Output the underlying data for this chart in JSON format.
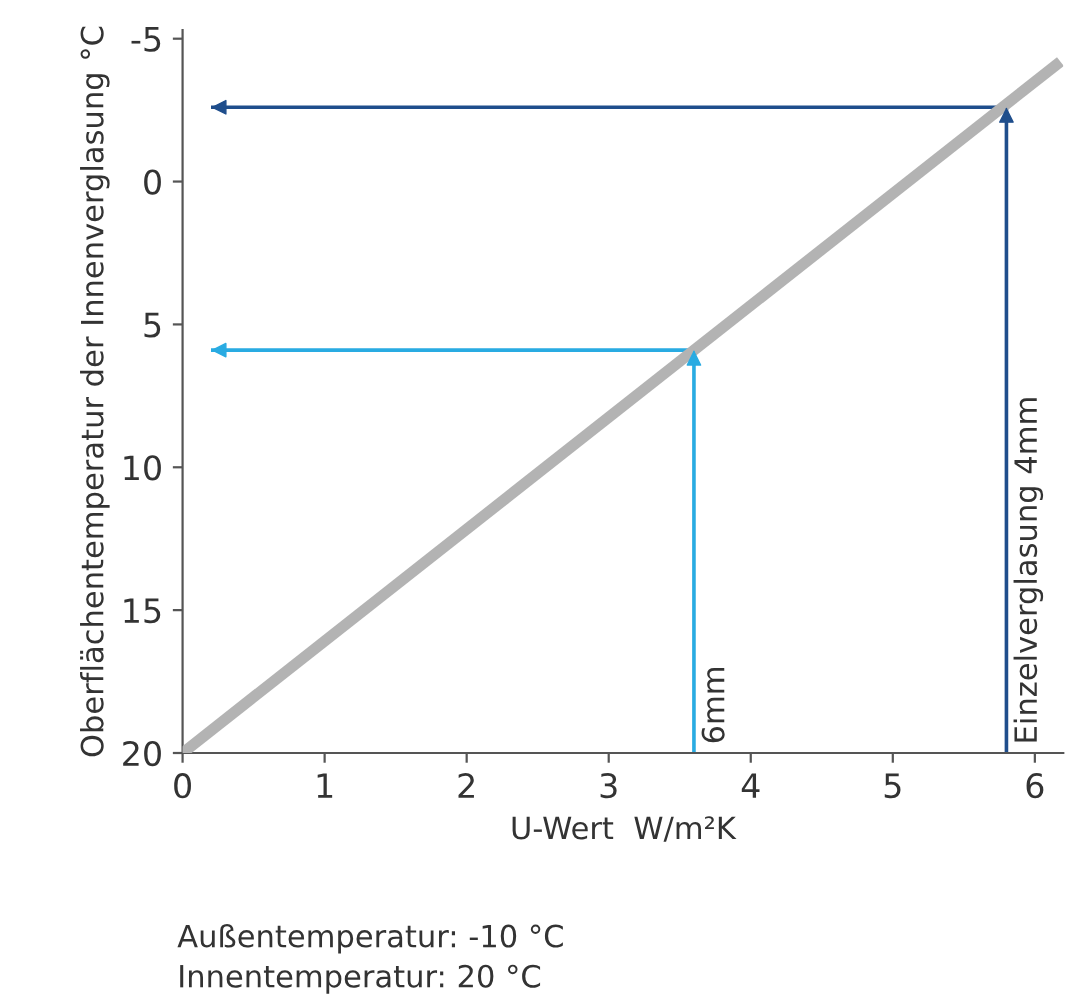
{
  "chart_data": {
    "type": "line",
    "xlabel": "U-Wert  W/m²K",
    "ylabel": "Oberflächentemperatur der Innenverglasung °C",
    "xlim": [
      0,
      6.2
    ],
    "ylim": [
      20,
      -5.3
    ],
    "xticks": [
      0,
      1,
      2,
      3,
      4,
      5,
      6
    ],
    "yticks": [
      {
        "value": -5,
        "label": "-5"
      },
      0,
      5,
      10,
      15,
      20
    ],
    "grid": false,
    "marker": "none",
    "line_style": "solid",
    "series": [
      {
        "x": [
          0,
          6.18
        ],
        "values": [
          20,
          -4.2
        ],
        "color": "#b3b3b3"
      },
      {
        "x": [
          3.6,
          3.6,
          0.2
        ],
        "values": [
          20,
          5.9,
          5.9
        ],
        "color": "#29abe2"
      },
      {
        "x": [
          5.8,
          5.8,
          0.2
        ],
        "values": [
          20,
          -2.6,
          -2.6
        ],
        "color": "#1f4e8c"
      }
    ],
    "annotations": [
      "6mm",
      "Einzelverglasung 4mm",
      "Außentemperatur: -10 °C",
      "Innentemperatur: 20 °C"
    ]
  }
}
